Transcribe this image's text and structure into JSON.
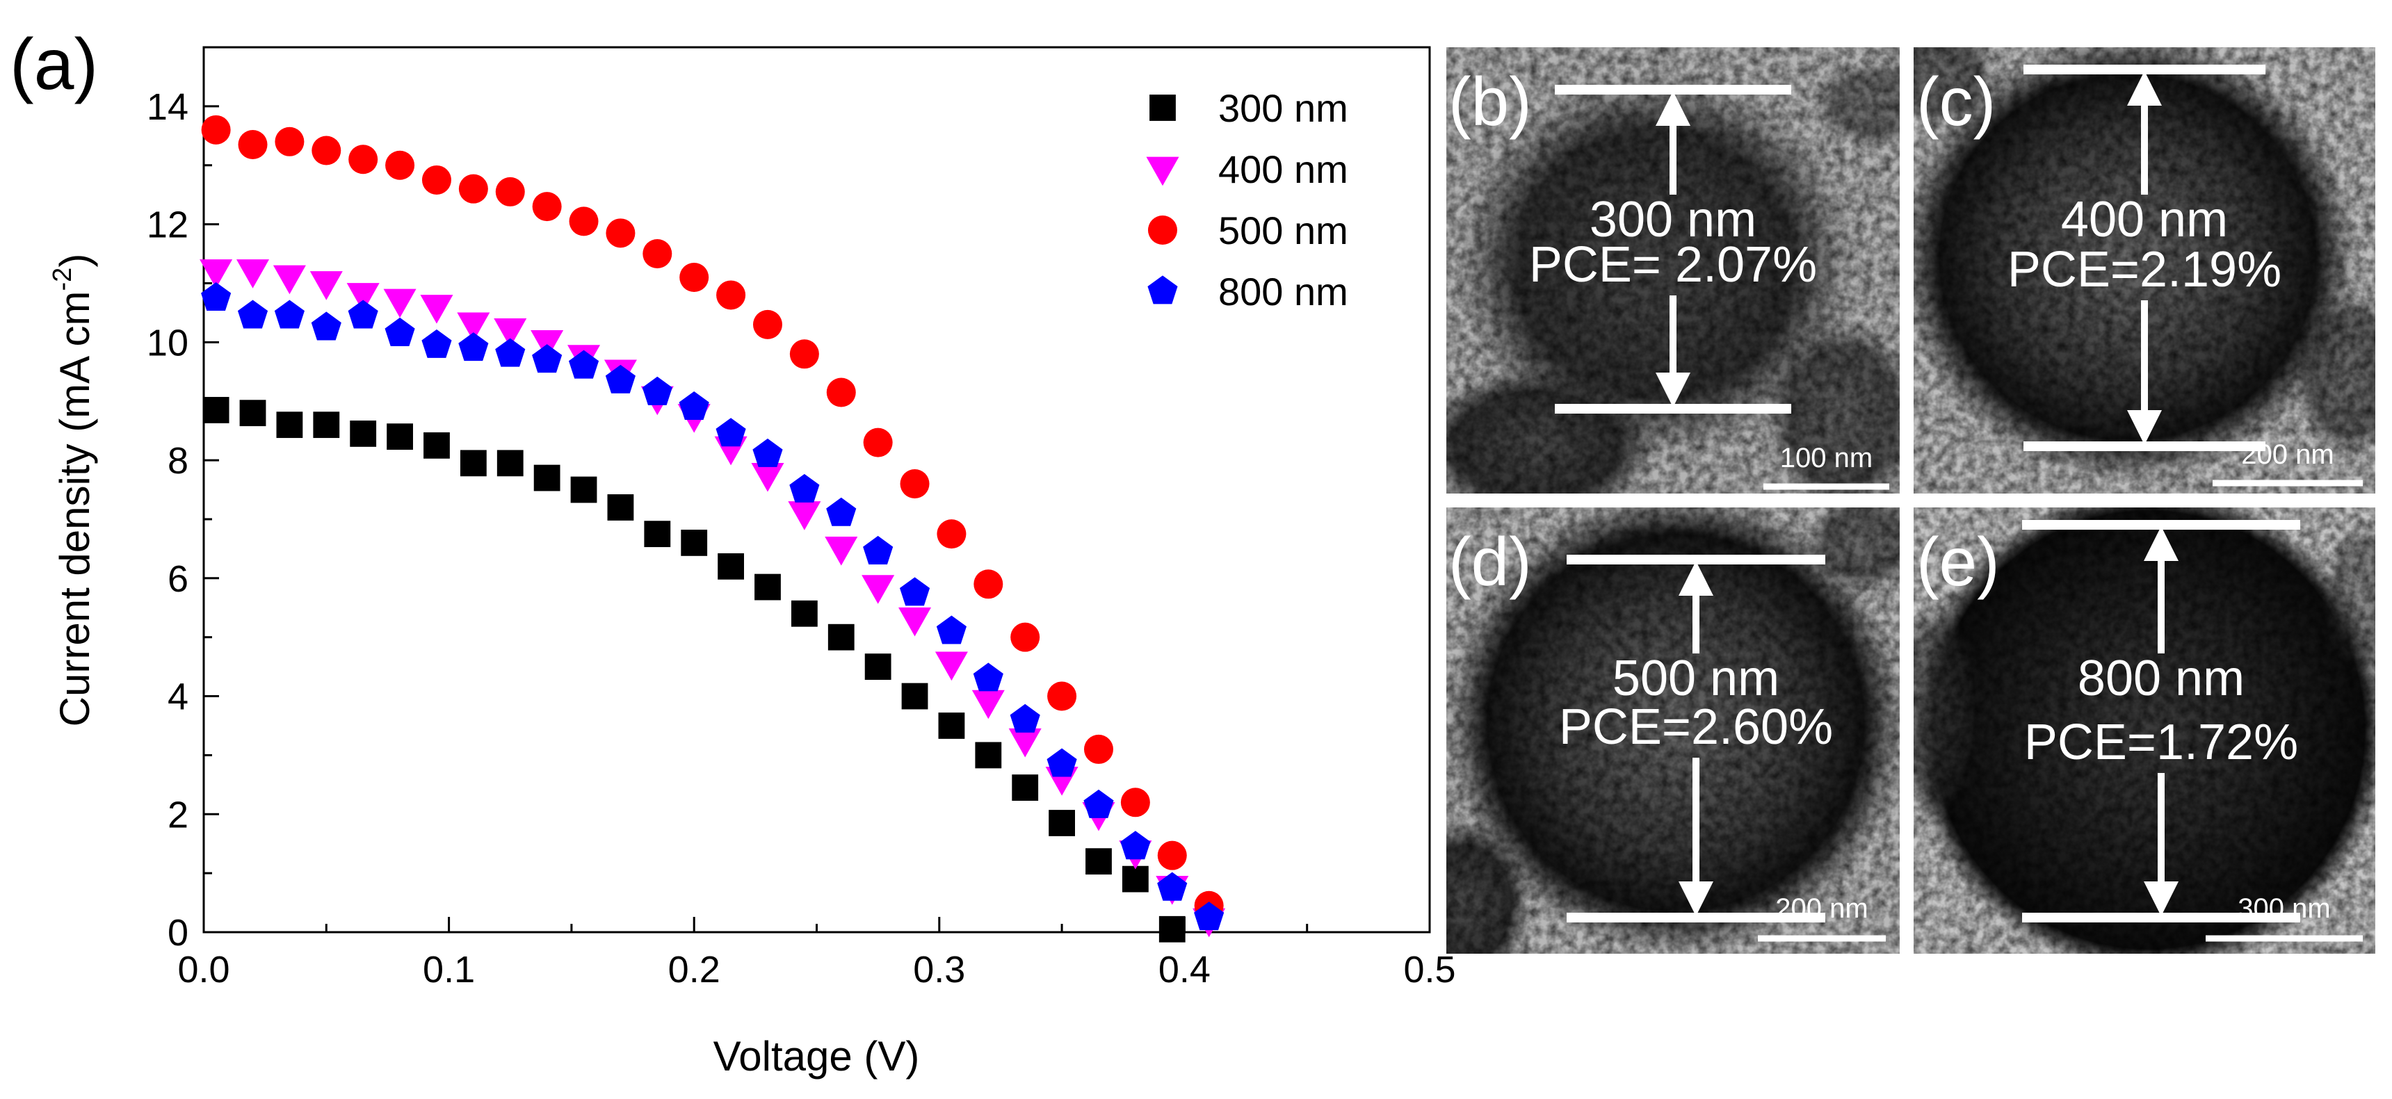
{
  "panel_a": {
    "label": "(a)",
    "chart_data": {
      "type": "scatter",
      "title": "",
      "xlabel": "Voltage (V)",
      "ylabel_main": "Current density (mA cm",
      "ylabel_sup": "-2",
      "ylabel_close": ")",
      "xlim": [
        0,
        0.5
      ],
      "ylim": [
        0,
        15
      ],
      "xticks": [
        0,
        0.1,
        0.2,
        0.3,
        0.4,
        0.5
      ],
      "xtick_labels": [
        "0.0",
        "0.1",
        "0.2",
        "0.3",
        "0.4",
        "0.5"
      ],
      "yticks": [
        0,
        2,
        4,
        6,
        8,
        10,
        12,
        14
      ],
      "ytick_labels": [
        "0",
        "2",
        "4",
        "6",
        "8",
        "10",
        "12",
        "14"
      ],
      "legend_position": "top-right",
      "series": [
        {
          "name": "300 nm",
          "marker": "square",
          "color": "#000000",
          "x": [
            0.005,
            0.02,
            0.035,
            0.05,
            0.065,
            0.08,
            0.095,
            0.11,
            0.125,
            0.14,
            0.155,
            0.17,
            0.185,
            0.2,
            0.215,
            0.23,
            0.245,
            0.26,
            0.275,
            0.29,
            0.305,
            0.32,
            0.335,
            0.35,
            0.365,
            0.38,
            0.395
          ],
          "y": [
            8.85,
            8.8,
            8.6,
            8.6,
            8.45,
            8.4,
            8.25,
            7.95,
            7.95,
            7.7,
            7.5,
            7.2,
            6.75,
            6.6,
            6.2,
            5.85,
            5.4,
            5.0,
            4.5,
            4.0,
            3.5,
            3.0,
            2.45,
            1.85,
            1.2,
            0.9,
            0.05
          ]
        },
        {
          "name": "400 nm",
          "marker": "triangle-down",
          "color": "#ff00ff",
          "x": [
            0.005,
            0.02,
            0.035,
            0.05,
            0.065,
            0.08,
            0.095,
            0.11,
            0.125,
            0.14,
            0.155,
            0.17,
            0.185,
            0.2,
            0.215,
            0.23,
            0.245,
            0.26,
            0.275,
            0.29,
            0.305,
            0.32,
            0.335,
            0.35,
            0.365,
            0.38,
            0.395,
            0.41
          ],
          "y": [
            11.2,
            11.2,
            11.1,
            11.0,
            10.8,
            10.7,
            10.6,
            10.3,
            10.2,
            10.0,
            9.75,
            9.5,
            9.05,
            8.75,
            8.2,
            7.75,
            7.1,
            6.5,
            5.85,
            5.3,
            4.55,
            3.9,
            3.25,
            2.6,
            2.0,
            1.35,
            0.75,
            0.2
          ]
        },
        {
          "name": "500 nm",
          "marker": "circle",
          "color": "#ff0000",
          "x": [
            0.005,
            0.02,
            0.035,
            0.05,
            0.065,
            0.08,
            0.095,
            0.11,
            0.125,
            0.14,
            0.155,
            0.17,
            0.185,
            0.2,
            0.215,
            0.23,
            0.245,
            0.26,
            0.275,
            0.29,
            0.305,
            0.32,
            0.335,
            0.35,
            0.365,
            0.38,
            0.395,
            0.41
          ],
          "y": [
            13.6,
            13.35,
            13.4,
            13.25,
            13.1,
            13.0,
            12.75,
            12.6,
            12.55,
            12.3,
            12.05,
            11.85,
            11.5,
            11.1,
            10.8,
            10.3,
            9.8,
            9.15,
            8.3,
            7.6,
            6.75,
            5.9,
            5.0,
            4.0,
            3.1,
            2.2,
            1.3,
            0.45
          ]
        },
        {
          "name": "800 nm",
          "marker": "pentagon",
          "color": "#0000ff",
          "x": [
            0.005,
            0.02,
            0.035,
            0.05,
            0.065,
            0.08,
            0.095,
            0.11,
            0.125,
            0.14,
            0.155,
            0.17,
            0.185,
            0.2,
            0.215,
            0.23,
            0.245,
            0.26,
            0.275,
            0.29,
            0.305,
            0.32,
            0.335,
            0.35,
            0.365,
            0.38,
            0.395,
            0.41
          ],
          "y": [
            10.75,
            10.45,
            10.45,
            10.25,
            10.45,
            10.15,
            9.95,
            9.9,
            9.8,
            9.7,
            9.6,
            9.35,
            9.15,
            8.9,
            8.45,
            8.1,
            7.5,
            7.1,
            6.45,
            5.75,
            5.1,
            4.3,
            3.6,
            2.85,
            2.15,
            1.45,
            0.75,
            0.25
          ]
        }
      ]
    }
  },
  "micrographs": [
    {
      "label": "(b)",
      "size": "300 nm",
      "pce": "PCE= 2.07%",
      "scale": "100 nm"
    },
    {
      "label": "(c)",
      "size": "400 nm",
      "pce": "PCE=2.19%",
      "scale": "200 nm"
    },
    {
      "label": "(d)",
      "size": "500 nm",
      "pce": "PCE=2.60%",
      "scale": "200 nm"
    },
    {
      "label": "(e)",
      "size": "800 nm",
      "pce": "PCE=1.72%",
      "scale": "300 nm"
    }
  ],
  "colors": {
    "frame": "#000000",
    "annotation": "#ffffff",
    "background": "#ffffff"
  }
}
